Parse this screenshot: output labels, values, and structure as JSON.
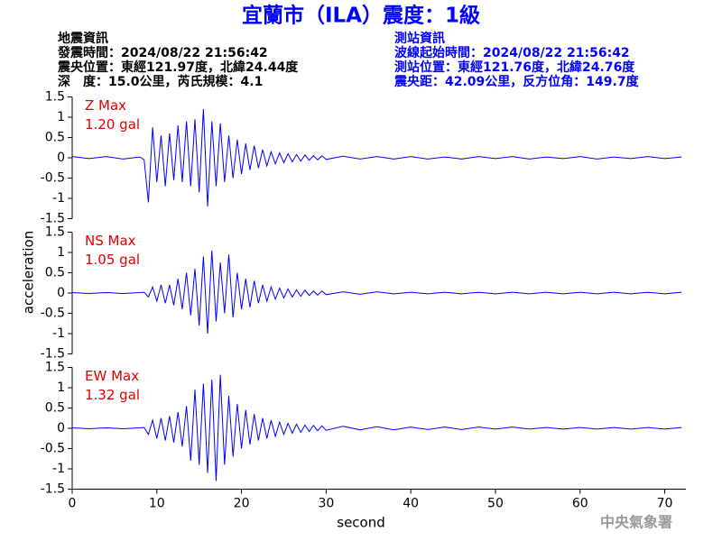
{
  "header": {
    "title": "宜蘭市（ILA）震度：1級",
    "left": [
      "地震資訊",
      "發震時間：2024/08/22 21:56:42",
      "震央位置：東經121.97度，北緯24.44度",
      "深　度：15.0公里，芮氏規模：4.1"
    ],
    "right": [
      "測站資訊",
      "波線起始時間：2024/08/22 21:56:42",
      "測站位置：東經121.76度，北緯24.76度",
      "震央距：42.09公里，反方位角：149.7度"
    ]
  },
  "footer": "中央氣象署",
  "chart_data": [
    {
      "type": "line",
      "annotations": [
        "Z Max",
        "1.20 gal"
      ],
      "annotation_color": "#e00000",
      "xlim": [
        0,
        72.5
      ],
      "ylim": [
        -1.5,
        1.5
      ],
      "yticks": [
        1.5,
        1,
        0.5,
        0,
        -0.5,
        -1,
        -1.5
      ],
      "series": [
        {
          "color": "#0000ff",
          "x": [
            0,
            2,
            4,
            6,
            8,
            8.5,
            9,
            9.5,
            10,
            10.5,
            11,
            11.5,
            12,
            12.5,
            13,
            13.5,
            14,
            14.5,
            15,
            15.5,
            16,
            16.5,
            17,
            17.5,
            18,
            18.5,
            19,
            19.5,
            20,
            20.5,
            21,
            21.5,
            22,
            22.5,
            23,
            23.5,
            24,
            24.5,
            25,
            25.5,
            26,
            26.5,
            27,
            27.5,
            28,
            28.5,
            29,
            29.5,
            30,
            32,
            34,
            36,
            38,
            40,
            42,
            44,
            46,
            48,
            50,
            52,
            54,
            56,
            58,
            60,
            62,
            64,
            66,
            68,
            70,
            72
          ],
          "values": [
            0.03,
            -0.02,
            0.03,
            -0.03,
            0.02,
            -0.05,
            -1.1,
            0.75,
            -0.6,
            0.55,
            -0.7,
            0.6,
            -0.55,
            0.8,
            -0.6,
            0.9,
            -0.7,
            0.95,
            -0.85,
            1.2,
            -1.2,
            0.9,
            -0.7,
            0.85,
            -0.6,
            0.55,
            -0.5,
            0.45,
            -0.4,
            0.35,
            -0.3,
            0.3,
            -0.25,
            0.2,
            -0.2,
            0.15,
            -0.15,
            0.12,
            -0.12,
            0.1,
            -0.1,
            0.08,
            -0.08,
            0.07,
            -0.06,
            0.05,
            -0.05,
            0.05,
            -0.04,
            0.04,
            -0.03,
            0.03,
            -0.03,
            0.03,
            -0.03,
            0.02,
            -0.03,
            0.03,
            -0.02,
            0.03,
            -0.03,
            0.02,
            -0.02,
            0.03,
            -0.03,
            0.02,
            -0.02,
            0.03,
            -0.02,
            0.02
          ]
        }
      ]
    },
    {
      "type": "line",
      "annotations": [
        "NS Max",
        "1.05 gal"
      ],
      "annotation_color": "#e00000",
      "y_label": "acceleration",
      "xlim": [
        0,
        72.5
      ],
      "ylim": [
        -1.5,
        1.5
      ],
      "yticks": [
        1.5,
        1,
        0.5,
        0,
        -0.5,
        -1,
        -1.5
      ],
      "series": [
        {
          "color": "#0000ff",
          "x": [
            0,
            2,
            4,
            6,
            8,
            8.5,
            9,
            9.5,
            10,
            10.5,
            11,
            11.5,
            12,
            12.5,
            13,
            13.5,
            14,
            14.5,
            15,
            15.5,
            16,
            16.5,
            17,
            17.5,
            18,
            18.5,
            19,
            19.5,
            20,
            20.5,
            21,
            21.5,
            22,
            22.5,
            23,
            23.5,
            24,
            24.5,
            25,
            25.5,
            26,
            26.5,
            27,
            27.5,
            28,
            28.5,
            29,
            29.5,
            30,
            32,
            34,
            36,
            38,
            40,
            42,
            44,
            46,
            48,
            50,
            52,
            54,
            56,
            58,
            60,
            62,
            64,
            66,
            68,
            70,
            72
          ],
          "values": [
            0.01,
            -0.01,
            0.01,
            -0.01,
            0.01,
            0.02,
            -0.1,
            0.15,
            -0.2,
            0.2,
            -0.25,
            0.2,
            -0.3,
            0.35,
            -0.4,
            0.5,
            -0.55,
            0.6,
            -0.8,
            0.9,
            -1.0,
            1.05,
            -0.7,
            0.75,
            -0.5,
            0.95,
            -0.6,
            0.5,
            -0.4,
            0.35,
            -0.35,
            0.3,
            -0.25,
            0.2,
            -0.2,
            0.15,
            -0.15,
            0.12,
            -0.12,
            0.1,
            -0.1,
            0.08,
            -0.08,
            0.07,
            -0.06,
            0.05,
            -0.05,
            0.05,
            -0.04,
            0.03,
            -0.03,
            0.03,
            -0.02,
            0.02,
            -0.02,
            0.02,
            -0.02,
            0.02,
            -0.02,
            0.02,
            -0.02,
            0.02,
            -0.02,
            0.02,
            -0.02,
            0.02,
            -0.02,
            0.02,
            -0.02,
            0.02
          ]
        }
      ]
    },
    {
      "type": "line",
      "annotations": [
        "EW Max",
        "1.32 gal"
      ],
      "annotation_color": "#e00000",
      "x_label": "second",
      "xlim": [
        0,
        72.5
      ],
      "xticks": [
        0,
        10,
        20,
        30,
        40,
        50,
        60,
        70
      ],
      "ylim": [
        -1.5,
        1.5
      ],
      "yticks": [
        1.5,
        1,
        0.5,
        0,
        -0.5,
        -1,
        -1.5
      ],
      "series": [
        {
          "color": "#0000ff",
          "x": [
            0,
            2,
            4,
            6,
            8,
            8.5,
            9,
            9.5,
            10,
            10.5,
            11,
            11.5,
            12,
            12.5,
            13,
            13.5,
            14,
            14.5,
            15,
            15.5,
            16,
            16.5,
            17,
            17.5,
            18,
            18.5,
            19,
            19.5,
            20,
            20.5,
            21,
            21.5,
            22,
            22.5,
            23,
            23.5,
            24,
            24.5,
            25,
            25.5,
            26,
            26.5,
            27,
            27.5,
            28,
            28.5,
            29,
            29.5,
            30,
            32,
            34,
            36,
            38,
            40,
            42,
            44,
            46,
            48,
            50,
            52,
            54,
            56,
            58,
            60,
            62,
            64,
            66,
            68,
            70,
            72
          ],
          "values": [
            0.01,
            -0.01,
            0.01,
            -0.01,
            0.01,
            0.02,
            -0.15,
            0.2,
            -0.25,
            0.25,
            -0.3,
            0.3,
            -0.35,
            0.4,
            -0.45,
            0.55,
            -0.8,
            0.95,
            -0.9,
            1.1,
            -1.1,
            1.2,
            -1.3,
            1.32,
            -0.9,
            0.8,
            -0.7,
            0.6,
            -0.5,
            0.45,
            -0.4,
            0.35,
            -0.3,
            0.25,
            -0.25,
            0.2,
            -0.2,
            0.15,
            -0.15,
            0.12,
            -0.12,
            0.1,
            -0.1,
            0.08,
            -0.08,
            0.07,
            -0.06,
            0.06,
            -0.05,
            0.05,
            -0.04,
            0.04,
            -0.04,
            0.03,
            -0.03,
            0.03,
            -0.03,
            0.03,
            -0.02,
            0.03,
            -0.02,
            0.02,
            -0.02,
            0.02,
            -0.02,
            0.02,
            -0.02,
            0.02,
            -0.02,
            0.02
          ]
        }
      ]
    }
  ]
}
